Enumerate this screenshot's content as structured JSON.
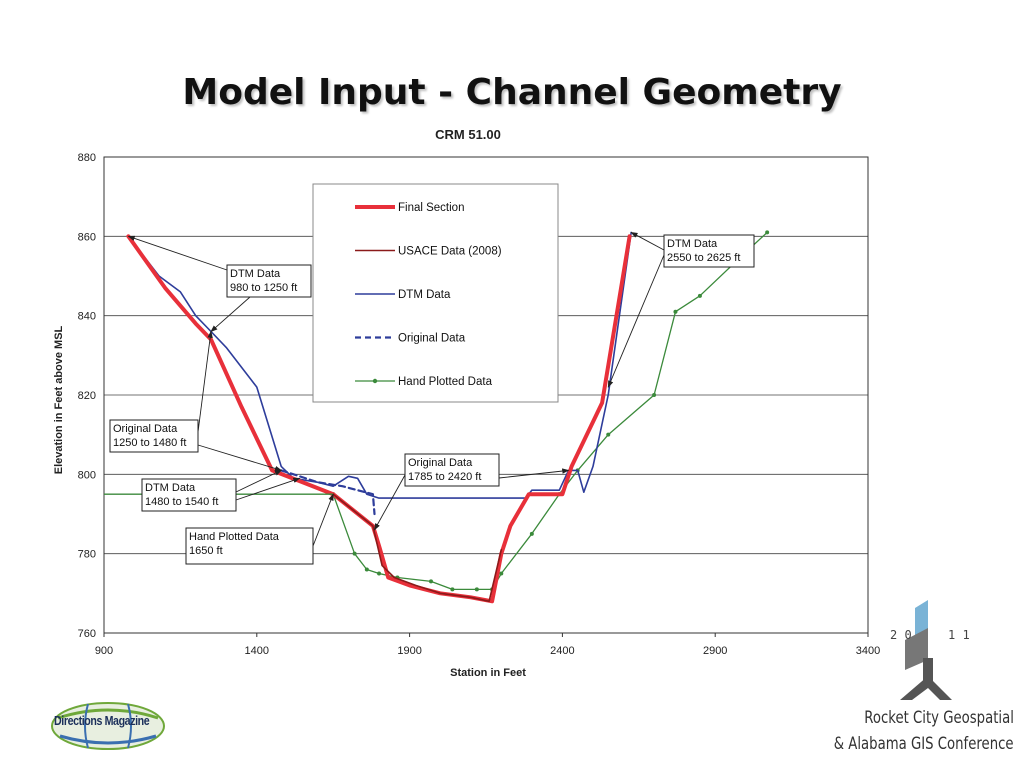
{
  "slide": {
    "title": "Model Input - Channel Geometry"
  },
  "chart_data": {
    "type": "line",
    "title": "CRM 51.00",
    "xlabel": "Station in Feet",
    "ylabel": "Elevation in Feet above MSL",
    "xlim": [
      900,
      3400
    ],
    "ylim": [
      760,
      880
    ],
    "xticks": [
      900,
      1400,
      1900,
      2400,
      2900,
      3400
    ],
    "yticks": [
      760,
      780,
      800,
      820,
      840,
      860,
      880
    ],
    "grid": "horizontal",
    "legend_position": "top-center",
    "series": [
      {
        "name": "Final Section",
        "color": "#e8303a",
        "style": "solid-thick",
        "points": [
          [
            980,
            860
          ],
          [
            1100,
            847
          ],
          [
            1200,
            838
          ],
          [
            1250,
            834
          ],
          [
            1350,
            817
          ],
          [
            1450,
            801
          ],
          [
            1550,
            798
          ],
          [
            1650,
            795
          ],
          [
            1780,
            787
          ],
          [
            1800,
            782
          ],
          [
            1830,
            774
          ],
          [
            1900,
            772
          ],
          [
            2000,
            770
          ],
          [
            2100,
            769
          ],
          [
            2170,
            768
          ],
          [
            2200,
            780
          ],
          [
            2230,
            787
          ],
          [
            2290,
            795
          ],
          [
            2400,
            795
          ],
          [
            2430,
            802
          ],
          [
            2530,
            818
          ],
          [
            2620,
            860
          ]
        ]
      },
      {
        "name": "USACE Data (2008)",
        "color": "#8b1a1a",
        "style": "solid",
        "points": [
          [
            1650,
            795
          ],
          [
            1780,
            787
          ],
          [
            1810,
            777
          ],
          [
            1850,
            774
          ],
          [
            1920,
            772
          ],
          [
            2000,
            770
          ],
          [
            2100,
            769
          ],
          [
            2160,
            768
          ],
          [
            2200,
            781
          ]
        ]
      },
      {
        "name": "DTM Data",
        "color": "#2e3d9b",
        "style": "solid",
        "points": [
          [
            980,
            860
          ],
          [
            1080,
            850
          ],
          [
            1150,
            846
          ],
          [
            1200,
            840
          ],
          [
            1250,
            836
          ],
          [
            1300,
            832
          ],
          [
            1400,
            822
          ],
          [
            1480,
            802
          ],
          [
            1520,
            799
          ],
          [
            1600,
            798
          ],
          [
            1650,
            797
          ],
          [
            1700,
            799.5
          ],
          [
            1730,
            799
          ],
          [
            1760,
            795
          ],
          [
            1800,
            794
          ],
          [
            2000,
            794
          ],
          [
            2200,
            794
          ],
          [
            2280,
            794
          ],
          [
            2300,
            796
          ],
          [
            2390,
            796
          ],
          [
            2420,
            801
          ],
          [
            2450,
            801
          ],
          [
            2470,
            795.5
          ],
          [
            2500,
            802
          ],
          [
            2550,
            820
          ],
          [
            2625,
            861
          ]
        ]
      },
      {
        "name": "Original Data",
        "color": "#2e3d9b",
        "style": "dashed",
        "points": [
          [
            1480,
            801
          ],
          [
            1520,
            800
          ],
          [
            1600,
            798
          ],
          [
            1680,
            797
          ],
          [
            1730,
            796
          ],
          [
            1780,
            795
          ],
          [
            1785,
            790
          ]
        ]
      },
      {
        "name": "Hand Plotted Data",
        "color": "#3b8a3b",
        "style": "marker-line",
        "points": [
          [
            1650,
            795
          ],
          [
            1720,
            780
          ],
          [
            1760,
            776
          ],
          [
            1800,
            775
          ],
          [
            1860,
            774
          ],
          [
            1970,
            773
          ],
          [
            2040,
            771
          ],
          [
            2120,
            771
          ],
          [
            2170,
            771
          ],
          [
            2200,
            775
          ],
          [
            2300,
            785
          ],
          [
            2390,
            795
          ],
          [
            2450,
            801
          ],
          [
            2550,
            810
          ],
          [
            2700,
            820
          ],
          [
            2770,
            841
          ],
          [
            2850,
            845
          ],
          [
            3000,
            856
          ],
          [
            3070,
            861
          ]
        ]
      }
    ],
    "annotations": [
      {
        "lines": [
          "DTM Data",
          "980 to 1250 ft"
        ],
        "targets": [
          [
            980,
            860
          ],
          [
            1250,
            836
          ]
        ]
      },
      {
        "lines": [
          "Original Data",
          "1250 to 1480 ft"
        ],
        "targets": [
          [
            1250,
            836
          ],
          [
            1480,
            801
          ]
        ]
      },
      {
        "lines": [
          "DTM Data",
          "1480 to 1540 ft"
        ],
        "targets": [
          [
            1480,
            801
          ],
          [
            1540,
            799
          ]
        ]
      },
      {
        "lines": [
          "Hand Plotted Data",
          "1650 ft"
        ],
        "targets": [
          [
            1650,
            795
          ]
        ]
      },
      {
        "lines": [
          "Original Data",
          "1785 to 2420 ft"
        ],
        "targets": [
          [
            1785,
            786
          ],
          [
            2420,
            801
          ]
        ]
      },
      {
        "lines": [
          "DTM Data",
          "2550 to 2625 ft"
        ],
        "targets": [
          [
            2625,
            861
          ],
          [
            2550,
            822
          ]
        ]
      }
    ]
  },
  "logos": {
    "directions_magazine": "Directions Magazine",
    "conference_year_left": "2 0",
    "conference_year_right": "1 1",
    "conference_line1": "Rocket City Geospatial",
    "conference_line2": "& Alabama GIS Conference",
    "brand_blue": "#1b2f5a",
    "brand_green": "#6fa83a",
    "conference_blue": "#7ab3d6",
    "conference_gray": "#555555"
  }
}
